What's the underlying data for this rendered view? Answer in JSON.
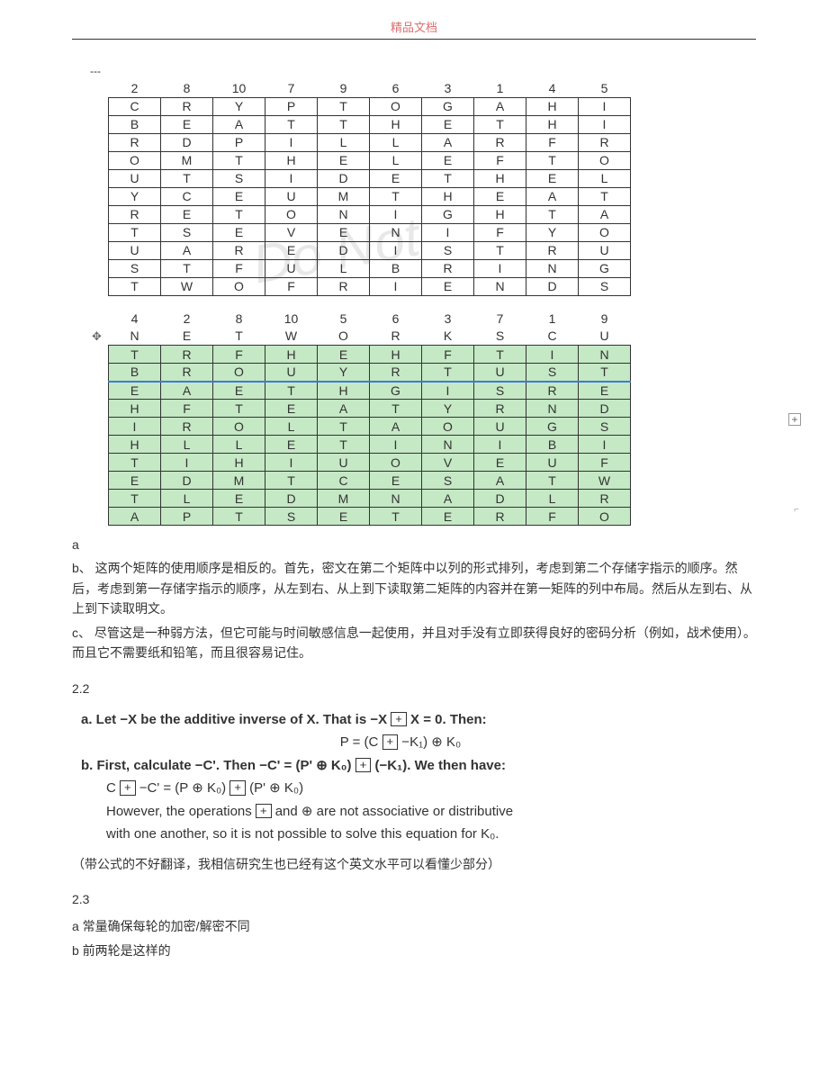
{
  "header": "精品文档",
  "dashes": "---",
  "matrix1": {
    "header": [
      "2",
      "8",
      "10",
      "7",
      "9",
      "6",
      "3",
      "1",
      "4",
      "5"
    ],
    "rows": [
      [
        "C",
        "R",
        "Y",
        "P",
        "T",
        "O",
        "G",
        "A",
        "H",
        "I"
      ],
      [
        "B",
        "E",
        "A",
        "T",
        "T",
        "H",
        "E",
        "T",
        "H",
        "I"
      ],
      [
        "R",
        "D",
        "P",
        "I",
        "L",
        "L",
        "A",
        "R",
        "F",
        "R"
      ],
      [
        "O",
        "M",
        "T",
        "H",
        "E",
        "L",
        "E",
        "F",
        "T",
        "O"
      ],
      [
        "U",
        "T",
        "S",
        "I",
        "D",
        "E",
        "T",
        "H",
        "E",
        "L"
      ],
      [
        "Y",
        "C",
        "E",
        "U",
        "M",
        "T",
        "H",
        "E",
        "A",
        "T"
      ],
      [
        "R",
        "E",
        "T",
        "O",
        "N",
        "I",
        "G",
        "H",
        "T",
        "A"
      ],
      [
        "T",
        "S",
        "E",
        "V",
        "E",
        "N",
        "I",
        "F",
        "Y",
        "O"
      ],
      [
        "U",
        "A",
        "R",
        "E",
        "D",
        "I",
        "S",
        "T",
        "R",
        "U"
      ],
      [
        "S",
        "T",
        "F",
        "U",
        "L",
        "B",
        "R",
        "I",
        "N",
        "G"
      ],
      [
        "T",
        "W",
        "O",
        "F",
        "R",
        "I",
        "E",
        "N",
        "D",
        "S"
      ]
    ]
  },
  "matrix2": {
    "header": [
      "4",
      "2",
      "8",
      "10",
      "5",
      "6",
      "3",
      "7",
      "1",
      "9"
    ],
    "row2": [
      "N",
      "E",
      "T",
      "W",
      "O",
      "R",
      "K",
      "S",
      "C",
      "U"
    ],
    "greenRows": [
      [
        "T",
        "R",
        "F",
        "H",
        "E",
        "H",
        "F",
        "T",
        "I",
        "N"
      ],
      [
        "B",
        "R",
        "O",
        "U",
        "Y",
        "R",
        "T",
        "U",
        "S",
        "T"
      ],
      [
        "E",
        "A",
        "E",
        "T",
        "H",
        "G",
        "I",
        "S",
        "R",
        "E"
      ],
      [
        "H",
        "F",
        "T",
        "E",
        "A",
        "T",
        "Y",
        "R",
        "N",
        "D"
      ],
      [
        "I",
        "R",
        "O",
        "L",
        "T",
        "A",
        "O",
        "U",
        "G",
        "S"
      ],
      [
        "H",
        "L",
        "L",
        "E",
        "T",
        "I",
        "N",
        "I",
        "B",
        "I"
      ],
      [
        "T",
        "I",
        "H",
        "I",
        "U",
        "O",
        "V",
        "E",
        "U",
        "F"
      ],
      [
        "E",
        "D",
        "M",
        "T",
        "C",
        "E",
        "S",
        "A",
        "T",
        "W"
      ],
      [
        "T",
        "L",
        "E",
        "D",
        "M",
        "N",
        "A",
        "D",
        "L",
        "R"
      ],
      [
        "A",
        "P",
        "T",
        "S",
        "E",
        "T",
        "E",
        "R",
        "F",
        "O"
      ]
    ],
    "blueBottomRowIndex": 1,
    "colors": {
      "green": "#c5e8c5",
      "blue": "#3a7dd4"
    }
  },
  "text": {
    "a": "a",
    "b": "b、 这两个矩阵的使用顺序是相反的。首先，密文在第二个矩阵中以列的形式排列，考虑到第二个存储字指示的顺序。然后，考虑到第一存储字指示的顺序，从左到右、从上到下读取第二矩阵的内容并在第一矩阵的列中布局。然后从左到右、从上到下读取明文。",
    "c": "c、 尽管这是一种弱方法，但它可能与时间敏感信息一起使用，并且对手没有立即获得良好的密码分析（例如，战术使用）。而且它不需要纸和铅笔，而且很容易记住。",
    "s22": "2.2",
    "fa1": "a. Let −X be the additive inverse of X. That is −X ",
    "fa1b": " X = 0. Then:",
    "fa2": "P = (C ",
    "fa2b": " −K₁) ⊕ K₀",
    "fb1": "b. First, calculate −C'. Then −C' = (P' ⊕ K₀) ",
    "fb1b": " (−K₁). We then have:",
    "fb2": "C ",
    "fb2b": " −C' = (P ⊕ K₀) ",
    "fb2c": " (P' ⊕ K₀)",
    "fb3a": "However, the operations ",
    "fb3b": " and ⊕ are not associative or distributive",
    "fb4": "with one another, so it is not possible to solve this equation for K₀.",
    "note": "（带公式的不好翻译，我相信研究生也已经有这个英文水平可以看懂少部分）",
    "s23": "2.3",
    "s23a": "a 常量确保每轮的加密/解密不同",
    "s23b": "b 前两轮是这样的"
  }
}
